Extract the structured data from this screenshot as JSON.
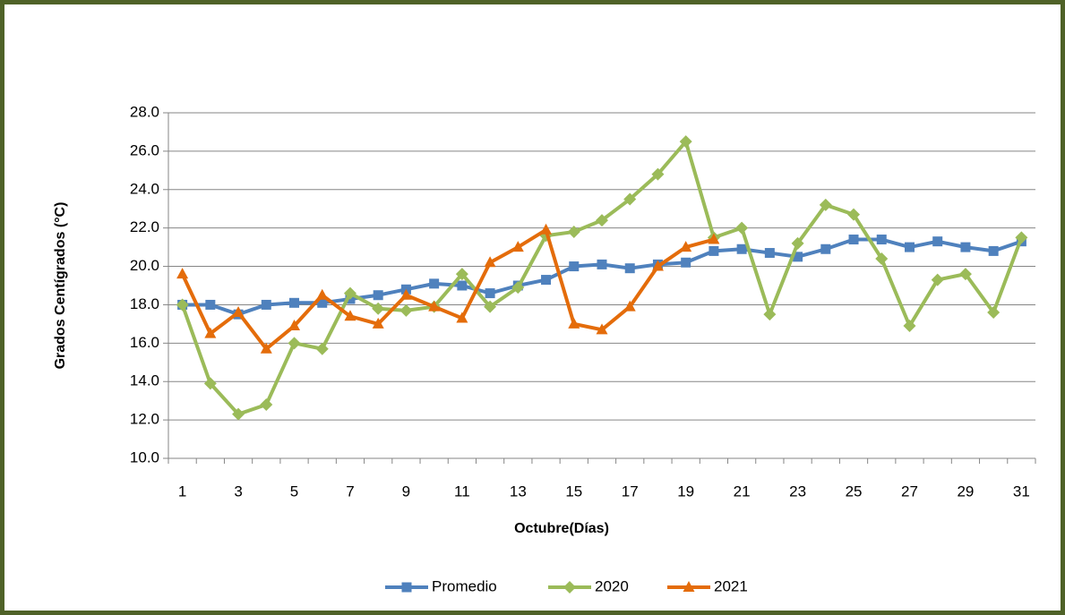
{
  "chart_data": {
    "type": "line",
    "x_label": "Octubre(Días)",
    "y_label": "Grados Centígrados (°C)",
    "categories": [
      1,
      null,
      3,
      null,
      5,
      null,
      7,
      null,
      9,
      null,
      11,
      null,
      13,
      null,
      15,
      null,
      17,
      null,
      19,
      null,
      21,
      null,
      23,
      null,
      25,
      null,
      27,
      null,
      29,
      null,
      31
    ],
    "series": [
      {
        "name": "Promedio",
        "color": "#4f81bd",
        "marker": "square",
        "values": [
          18.0,
          18.0,
          17.5,
          18.0,
          18.1,
          18.1,
          18.3,
          18.5,
          18.8,
          19.1,
          19.0,
          18.6,
          19.0,
          19.3,
          20.0,
          20.1,
          19.9,
          20.1,
          20.2,
          20.8,
          20.9,
          20.7,
          20.5,
          20.9,
          21.4,
          21.4,
          21.0,
          21.3,
          21.0,
          20.8,
          21.3
        ]
      },
      {
        "name": "2020",
        "color": "#9bbb59",
        "marker": "diamond",
        "values": [
          18.0,
          13.9,
          12.3,
          12.8,
          16.0,
          15.7,
          18.6,
          17.8,
          17.7,
          17.9,
          19.6,
          17.9,
          18.9,
          21.6,
          21.8,
          22.4,
          23.5,
          24.8,
          26.5,
          21.5,
          22.0,
          17.5,
          21.2,
          23.2,
          22.7,
          20.4,
          16.9,
          19.3,
          19.6,
          17.6,
          21.5
        ]
      },
      {
        "name": "2021",
        "color": "#e46c0a",
        "marker": "triangle",
        "values": [
          19.6,
          16.5,
          17.6,
          15.7,
          16.9,
          18.5,
          17.4,
          17.0,
          18.5,
          17.9,
          17.3,
          20.2,
          21.0,
          21.9,
          17.0,
          16.7,
          17.9,
          20.0,
          21.0,
          21.4,
          null,
          null,
          null,
          null,
          null,
          null,
          null,
          null,
          null,
          null,
          null
        ]
      }
    ],
    "ylim": [
      10,
      28
    ],
    "yticks": [
      {
        "value": 10,
        "label": "10.0"
      },
      {
        "value": 12,
        "label": "12.0"
      },
      {
        "value": 14,
        "label": "14.0"
      },
      {
        "value": 16,
        "label": "16.0"
      },
      {
        "value": 18,
        "label": "18.0"
      },
      {
        "value": 20,
        "label": "20.0"
      },
      {
        "value": 22,
        "label": "22.0"
      },
      {
        "value": 24,
        "label": "24.0"
      },
      {
        "value": 26,
        "label": "26.0"
      },
      {
        "value": 28,
        "label": "28.0"
      }
    ],
    "grid": true,
    "legend": "bottom"
  }
}
